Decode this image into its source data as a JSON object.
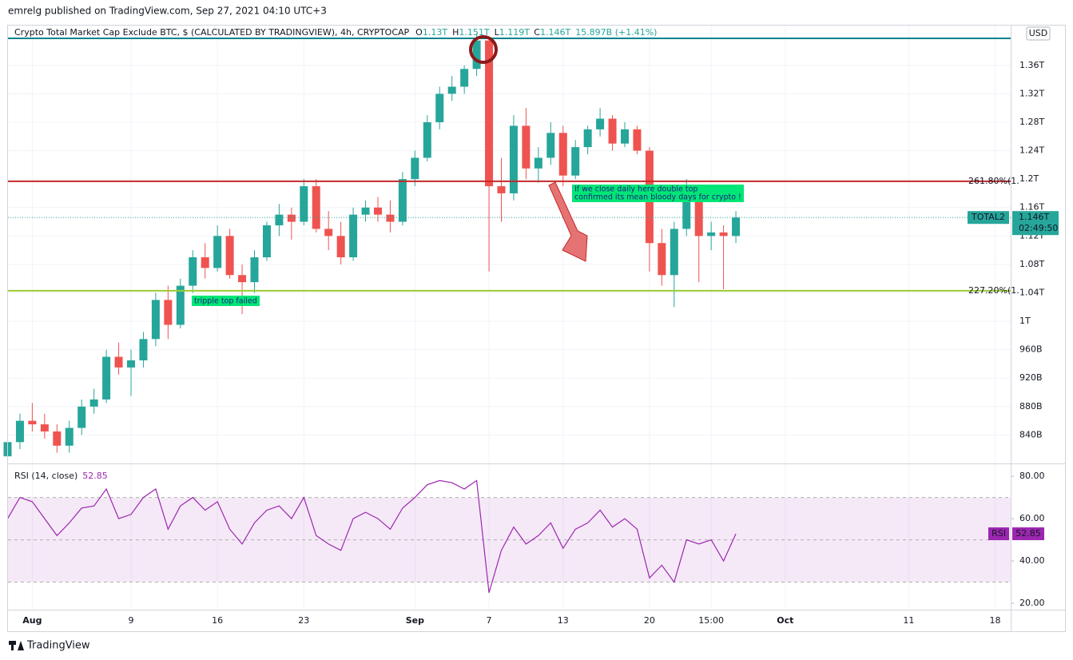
{
  "header": {
    "published": "emrelg published on TradingView.com, Sep 27, 2021 04:10 UTC+3",
    "currency": "USD",
    "brand": "TradingView"
  },
  "chart_data": [
    {
      "type": "candlestick",
      "title": "Crypto Total Market Cap Exclude BTC, $ (CALCULATED BY TRADINGVIEW), 4h, CRYPTOCAP",
      "ohlc": [
        {
          "key": "O",
          "value": "1.13T"
        },
        {
          "key": "H",
          "value": "1.151T"
        },
        {
          "key": "L",
          "value": "1.119T"
        },
        {
          "key": "C",
          "value": "1.146T"
        }
      ],
      "change": "15.897B (+1.41%)",
      "up_color": "#26a69a",
      "down_color": "#ef5350",
      "categories": [
        null,
        null,
        "Aug",
        null,
        null,
        null,
        null,
        null,
        null,
        null,
        "9",
        null,
        null,
        null,
        null,
        null,
        null,
        "16",
        null,
        null,
        null,
        null,
        null,
        null,
        "23",
        null,
        null,
        null,
        null,
        null,
        null,
        null,
        null,
        "Sep",
        null,
        null,
        null,
        null,
        null,
        "7",
        null,
        null,
        null,
        null,
        null,
        "13",
        null,
        null,
        null,
        null,
        null,
        null,
        "20",
        null,
        null,
        null,
        null,
        "15:00",
        null,
        null,
        null,
        null,
        null,
        "Oct",
        null,
        null,
        null,
        null,
        null,
        null,
        null,
        null,
        null,
        "11",
        null,
        null,
        null,
        null,
        null,
        null,
        "18",
        null,
        null
      ],
      "open": [
        810,
        830,
        860,
        855,
        845,
        825,
        850,
        880,
        890,
        950,
        935,
        945,
        975,
        1030,
        995,
        1050,
        1090,
        1075,
        1120,
        1065,
        1055,
        1090,
        1135,
        1150,
        1140,
        1190,
        1130,
        1120,
        1090,
        1150,
        1160,
        1150,
        1140,
        1200,
        1230,
        1280,
        1320,
        1330,
        1355,
        1395,
        1190,
        1180,
        1275,
        1215,
        1230,
        1265,
        1205,
        1245,
        1270,
        1285,
        1250,
        1270,
        1240,
        1110,
        1065,
        1130,
        1170,
        1120,
        1125,
        1120,
        null,
        null,
        null,
        null,
        null,
        null,
        null,
        null,
        null,
        null,
        null,
        null,
        null,
        null,
        null,
        null,
        null,
        null,
        null,
        null,
        null,
        null,
        null
      ],
      "high": [
        835,
        870,
        885,
        870,
        855,
        860,
        890,
        905,
        960,
        970,
        960,
        985,
        1040,
        1050,
        1060,
        1100,
        1110,
        1135,
        1130,
        1080,
        1100,
        1140,
        1165,
        1160,
        1200,
        1200,
        1155,
        1140,
        1160,
        1170,
        1175,
        1170,
        1210,
        1240,
        1290,
        1330,
        1345,
        1360,
        1405,
        1400,
        1230,
        1290,
        1300,
        1245,
        1280,
        1275,
        1255,
        1275,
        1300,
        1290,
        1280,
        1275,
        1245,
        1130,
        1140,
        1200,
        1185,
        1140,
        1135,
        1155,
        null,
        null,
        null,
        null,
        null,
        null,
        null,
        null,
        null,
        null,
        null,
        null,
        null,
        null,
        null,
        null,
        null,
        null,
        null,
        null,
        null,
        null,
        null
      ],
      "low": [
        800,
        820,
        845,
        835,
        815,
        815,
        840,
        870,
        885,
        925,
        895,
        935,
        965,
        975,
        990,
        1040,
        1060,
        1070,
        1060,
        1010,
        1040,
        1085,
        1120,
        1115,
        1135,
        1125,
        1100,
        1080,
        1085,
        1140,
        1140,
        1125,
        1135,
        1190,
        1225,
        1270,
        1310,
        1320,
        1345,
        1070,
        1140,
        1170,
        1200,
        1195,
        1220,
        1190,
        1200,
        1235,
        1260,
        1240,
        1245,
        1235,
        1070,
        1050,
        1020,
        1120,
        1055,
        1100,
        1045,
        1110,
        null,
        null,
        null,
        null,
        null,
        null,
        null,
        null,
        null,
        null,
        null,
        null,
        null,
        null,
        null,
        null,
        null,
        null,
        null,
        null,
        null,
        null,
        null
      ],
      "close": [
        830,
        860,
        855,
        845,
        825,
        850,
        880,
        890,
        950,
        935,
        945,
        975,
        1030,
        995,
        1050,
        1090,
        1075,
        1120,
        1065,
        1055,
        1090,
        1135,
        1150,
        1140,
        1190,
        1130,
        1120,
        1090,
        1150,
        1160,
        1150,
        1140,
        1200,
        1230,
        1280,
        1320,
        1330,
        1355,
        1395,
        1190,
        1180,
        1275,
        1215,
        1230,
        1265,
        1205,
        1245,
        1270,
        1285,
        1250,
        1270,
        1240,
        1110,
        1065,
        1130,
        1170,
        1120,
        1125,
        1120,
        1146,
        null,
        null,
        null,
        null,
        null,
        null,
        null,
        null,
        null,
        null,
        null,
        null,
        null,
        null,
        null,
        null,
        null,
        null,
        null,
        null,
        null,
        null,
        null
      ],
      "ylim": [
        800,
        1416
      ],
      "yticks": [
        {
          "value": 840,
          "label": "840B"
        },
        {
          "value": 880,
          "label": "880B"
        },
        {
          "value": 920,
          "label": "920B"
        },
        {
          "value": 960,
          "label": "960B"
        },
        {
          "value": 1000,
          "label": "1T"
        },
        {
          "value": 1040,
          "label": "1.04T"
        },
        {
          "value": 1080,
          "label": "1.08T"
        },
        {
          "value": 1120,
          "label": "1.12T"
        },
        {
          "value": 1160,
          "label": "1.16T"
        },
        {
          "value": 1200,
          "label": "1.2T"
        },
        {
          "value": 1240,
          "label": "1.24T"
        },
        {
          "value": 1280,
          "label": "1.28T"
        },
        {
          "value": 1320,
          "label": "1.32T"
        },
        {
          "value": 1360,
          "label": "1.36T"
        }
      ],
      "levels": [
        {
          "value": 1398,
          "color": "#00838f"
        },
        {
          "value": 1197,
          "label": "261.80%(1.",
          "color": "#c62828"
        },
        {
          "value": 1043,
          "label": "227.20%(1.",
          "color": "#9ccc33"
        }
      ],
      "price_tag": {
        "name": "TOTAL2",
        "value": 1146,
        "label": "1.146T",
        "countdown": "02:49:50",
        "color": "#26a69a"
      },
      "annotations": [
        {
          "lines": [
            "If we close daily here double top",
            "confirmed its mean bloody days for crypto !"
          ]
        },
        {
          "lines": [
            "tripple top failed"
          ]
        }
      ],
      "grid": true
    },
    {
      "type": "line",
      "title": "RSI (14, close)",
      "series": [
        {
          "name": "RSI",
          "color": "#9c27b0",
          "values": [
            60,
            70,
            68,
            60,
            52,
            58,
            65,
            66,
            74,
            60,
            62,
            70,
            74,
            55,
            66,
            70,
            64,
            68,
            55,
            48,
            58,
            64,
            66,
            60,
            70,
            52,
            48,
            45,
            60,
            63,
            60,
            55,
            65,
            70,
            76,
            78,
            77,
            74,
            78,
            25,
            45,
            56,
            48,
            52,
            58,
            46,
            55,
            58,
            64,
            56,
            60,
            55,
            32,
            38,
            30,
            50,
            48,
            50,
            40,
            52.85,
            null,
            null,
            null,
            null,
            null,
            null,
            null,
            null,
            null,
            null,
            null,
            null,
            null,
            null,
            null,
            null,
            null,
            null,
            null,
            null,
            null,
            null,
            null
          ]
        }
      ],
      "band": [
        30,
        70
      ],
      "midline": 50,
      "ylim": [
        17,
        85.7
      ],
      "yticks": [
        {
          "value": 20,
          "label": "20.00"
        },
        {
          "value": 40,
          "label": "40.00"
        },
        {
          "value": 60,
          "label": "60.00"
        },
        {
          "value": 80,
          "label": "80.00"
        }
      ]
    }
  ]
}
